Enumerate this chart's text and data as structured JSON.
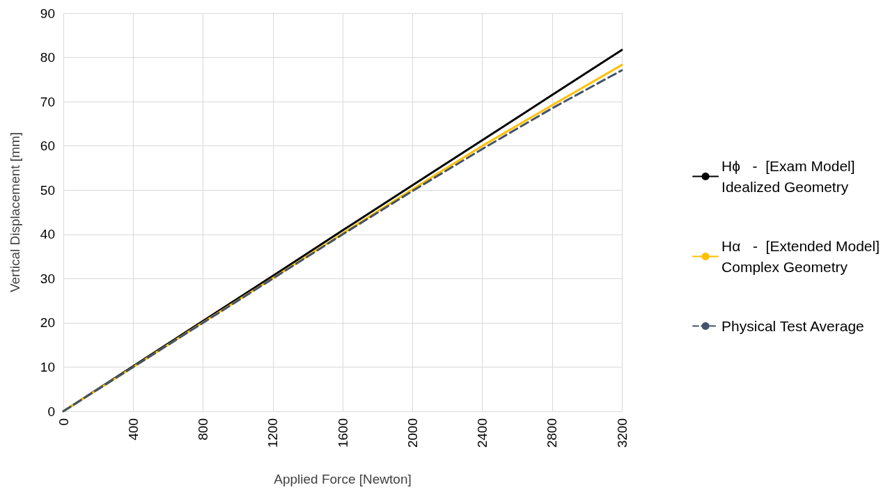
{
  "chart_data": {
    "type": "line",
    "xlabel": "Applied Force [Newton]",
    "ylabel": "Vertical Displacement [mm]",
    "x": [
      0,
      400,
      800,
      1200,
      1600,
      2000,
      2400,
      2800,
      3200
    ],
    "xlim": [
      0,
      3200
    ],
    "xticks": [
      0,
      400,
      800,
      1200,
      1600,
      2000,
      2400,
      2800,
      3200
    ],
    "ylim": [
      0,
      90
    ],
    "yticks": [
      0,
      10,
      20,
      30,
      40,
      50,
      60,
      70,
      80,
      90
    ],
    "grid": true,
    "legend": "right",
    "marker": "none",
    "series": [
      {
        "name": "Hϕ   -  [Exam Model]\nIdealized Geometry",
        "color": "#000000",
        "values": [
          0,
          10.2,
          20.4,
          30.6,
          40.9,
          51.1,
          61.3,
          71.5,
          81.7
        ]
      },
      {
        "name": "Hα   -  [Extended Model]\nComplex Geometry",
        "color": "#ffc000",
        "values": [
          0,
          10,
          20.1,
          30.1,
          40.2,
          50.2,
          60,
          69.2,
          78.3
        ]
      },
      {
        "name": "Physical Test Average",
        "color": "#44546a",
        "line_style": "dashed",
        "values": [
          0,
          10,
          20,
          30,
          40,
          49.8,
          59.3,
          68.5,
          77.1
        ]
      }
    ]
  }
}
